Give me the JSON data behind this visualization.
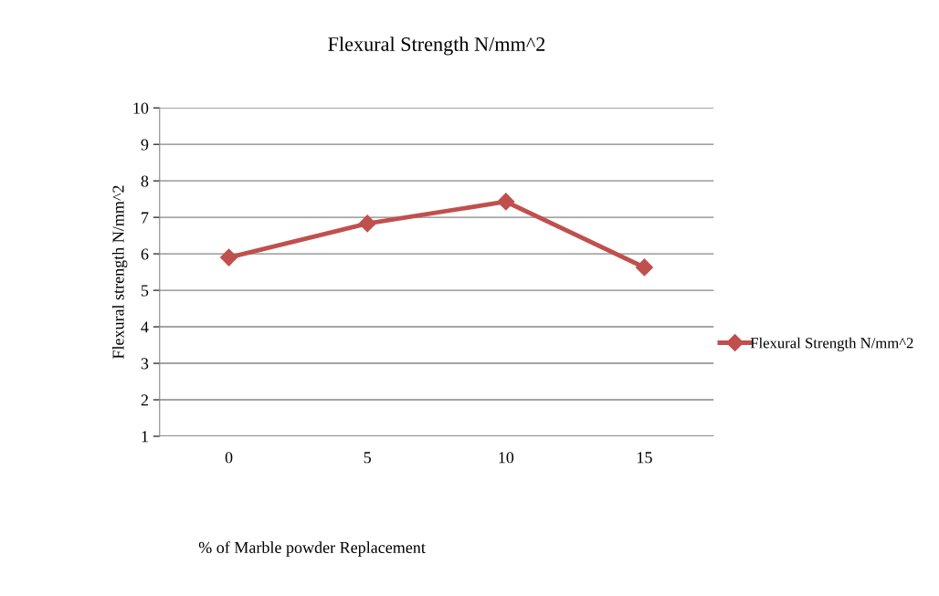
{
  "chart_data": {
    "type": "line",
    "title": "Flexural Strength N/mm^2",
    "xlabel": "% of Marble powder Replacement",
    "ylabel": "Flexural strength N/mm^2",
    "categories": [
      "0",
      "5",
      "10",
      "15"
    ],
    "series": [
      {
        "name": "Flexural Strength N/mm^2",
        "color": "#c0504d",
        "values": [
          5.9,
          6.83,
          7.43,
          5.63
        ]
      }
    ],
    "ylim": [
      1,
      10
    ],
    "yticks": [
      1,
      2,
      3,
      4,
      5,
      6,
      7,
      8,
      9,
      10
    ],
    "grid": "y",
    "legend": "right",
    "marker": "diamond",
    "line_style": "solid"
  }
}
